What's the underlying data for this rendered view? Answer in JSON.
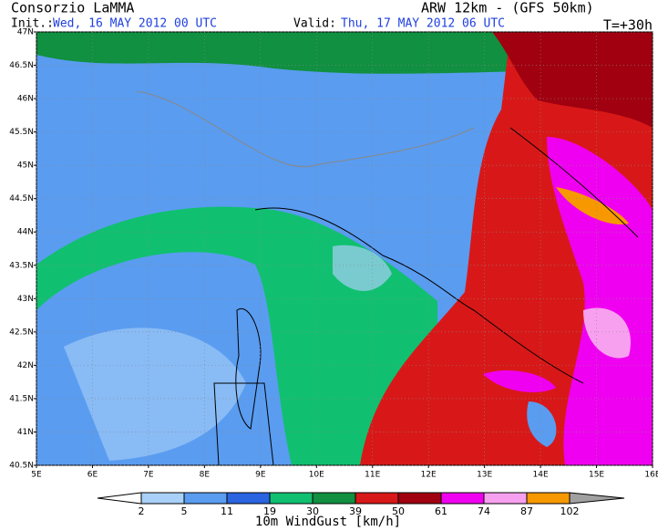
{
  "header": {
    "title": "Consorzio LaMMA",
    "init_label": "Init.:",
    "init": "Wed, 16 MAY 2012  00 UTC",
    "valid_label": "Valid:",
    "valid": "Thu, 17 MAY 2012  06 UTC",
    "model": "ARW 12km - (GFS 50km)",
    "lead": "T=+30h"
  },
  "map": {
    "lat_range": [
      40.5,
      47
    ],
    "lon_range": [
      5,
      16
    ],
    "lat_ticks": [
      {
        "value": 47,
        "label": "47N"
      },
      {
        "value": 46.5,
        "label": "46.5N"
      },
      {
        "value": 46,
        "label": "46N"
      },
      {
        "value": 45.5,
        "label": "45.5N"
      },
      {
        "value": 45,
        "label": "45N"
      },
      {
        "value": 44.5,
        "label": "44.5N"
      },
      {
        "value": 44,
        "label": "44N"
      },
      {
        "value": 43.5,
        "label": "43.5N"
      },
      {
        "value": 43,
        "label": "43N"
      },
      {
        "value": 42.5,
        "label": "42.5N"
      },
      {
        "value": 42,
        "label": "42N"
      },
      {
        "value": 41.5,
        "label": "41.5N"
      },
      {
        "value": 41,
        "label": "41N"
      },
      {
        "value": 40.5,
        "label": "40.5N"
      }
    ],
    "lon_ticks": [
      {
        "value": 5,
        "label": "5E"
      },
      {
        "value": 6,
        "label": "6E"
      },
      {
        "value": 7,
        "label": "7E"
      },
      {
        "value": 8,
        "label": "8E"
      },
      {
        "value": 9,
        "label": "9E"
      },
      {
        "value": 10,
        "label": "10E"
      },
      {
        "value": 11,
        "label": "11E"
      },
      {
        "value": 12,
        "label": "12E"
      },
      {
        "value": 13,
        "label": "13E"
      },
      {
        "value": 14,
        "label": "14E"
      },
      {
        "value": 15,
        "label": "15E"
      },
      {
        "value": 16,
        "label": "16E"
      }
    ]
  },
  "colorbar": {
    "label": "10m WindGust [km/h]",
    "levels": [
      2,
      5,
      11,
      19,
      30,
      39,
      50,
      61,
      74,
      87,
      102
    ],
    "colors": [
      "#a8d0f8",
      "#5a9cf0",
      "#2a64e0",
      "#10c070",
      "#109040",
      "#d81818",
      "#a00010",
      "#f000f0",
      "#f8a0f0",
      "#f89800"
    ],
    "under": "#ffffff",
    "over": "#a0a0a0"
  }
}
